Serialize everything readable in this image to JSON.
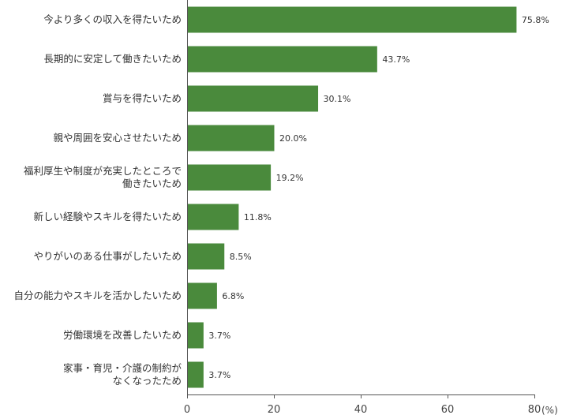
{
  "chart_data": {
    "type": "bar",
    "orientation": "horizontal",
    "bar_color": "#4a8a3c",
    "categories": [
      [
        "今より多くの収入を得たいため"
      ],
      [
        "長期的に安定して働きたいため"
      ],
      [
        "賞与を得たいため"
      ],
      [
        "親や周囲を安心させたいため"
      ],
      [
        "福利厚生や制度が充実したところで",
        "働きたいため"
      ],
      [
        "新しい経験やスキルを得たいため"
      ],
      [
        "やりがいのある仕事がしたいため"
      ],
      [
        "自分の能力やスキルを活かしたいため"
      ],
      [
        "労働環境を改善したいため"
      ],
      [
        "家事・育児・介護の制約が",
        "なくなったため"
      ]
    ],
    "values": [
      75.8,
      43.7,
      30.1,
      20.0,
      19.2,
      11.8,
      8.5,
      6.8,
      3.7,
      3.7
    ],
    "value_labels": [
      "75.8%",
      "43.7%",
      "30.1%",
      "20.0%",
      "19.2%",
      "11.8%",
      "8.5%",
      "6.8%",
      "3.7%",
      "3.7%"
    ],
    "xlim": [
      0,
      80
    ],
    "xticks": [
      0,
      20,
      40,
      60,
      80
    ],
    "xtick_labels": [
      "0",
      "20",
      "40",
      "60",
      "80"
    ],
    "unit_label": "(%)",
    "grid": false,
    "legend": "none"
  }
}
